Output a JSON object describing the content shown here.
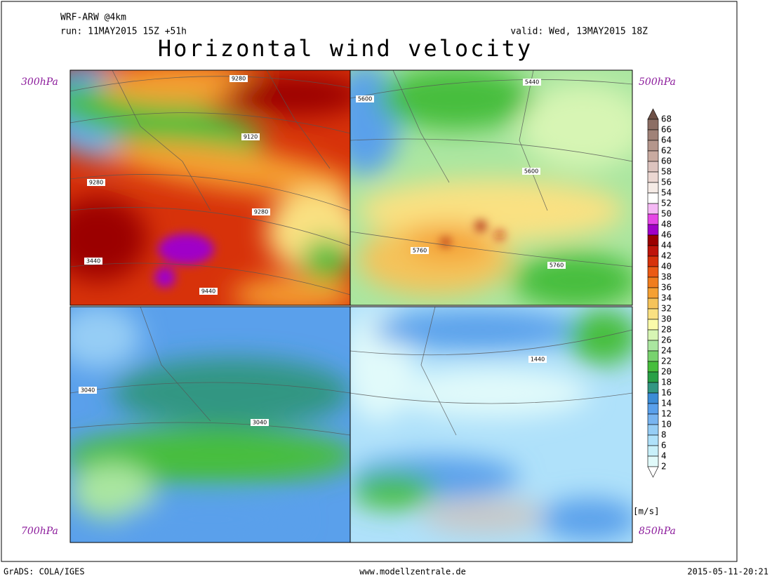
{
  "header": {
    "model": "WRF-ARW @4km",
    "run": "run: 11MAY2015 15Z +51h",
    "valid": "valid: Wed, 13MAY2015 18Z",
    "title": "Horizontal wind velocity"
  },
  "panels": [
    {
      "level": "300hPa",
      "contour_labels": [
        "9280",
        "9120",
        "9280",
        "9280",
        "3440",
        "9440"
      ]
    },
    {
      "level": "500hPa",
      "contour_labels": [
        "5440",
        "5600",
        "5600",
        "5760",
        "5760"
      ]
    },
    {
      "level": "700hPa",
      "contour_labels": [
        "3040",
        "3040"
      ]
    },
    {
      "level": "850hPa",
      "contour_labels": [
        "1440"
      ]
    }
  ],
  "colorbar": {
    "labels": [
      68,
      66,
      64,
      62,
      60,
      58,
      56,
      54,
      52,
      50,
      48,
      46,
      44,
      42,
      40,
      38,
      36,
      34,
      32,
      30,
      28,
      26,
      24,
      22,
      20,
      18,
      16,
      14,
      12,
      10,
      8,
      6,
      4,
      2
    ],
    "colors": [
      "#ffffff",
      "#e1fafa",
      "#c8f0fa",
      "#afe1fa",
      "#96cdf5",
      "#78b4f0",
      "#5aa0eb",
      "#3c8cd7",
      "#329682",
      "#28a046",
      "#46be3c",
      "#78d26e",
      "#aae6a0",
      "#d7f5b4",
      "#fafaaa",
      "#fae182",
      "#f5c35a",
      "#f5a032",
      "#f07d1e",
      "#eb5a14",
      "#d7320a",
      "#be140a",
      "#9b0000",
      "#a000c8",
      "#e646e6",
      "#f5b9f5",
      "#ffffff",
      "#f5ebe6",
      "#ebd7d2",
      "#dcc3be",
      "#c8aaa0",
      "#b4968c",
      "#a08278",
      "#8c6e64",
      "#6e5046"
    ],
    "unit": "[m/s]"
  },
  "footer": {
    "left": "GrADS: COLA/IGES",
    "center": "www.modellzentrale.de",
    "right": "2015-05-11-20:21"
  }
}
